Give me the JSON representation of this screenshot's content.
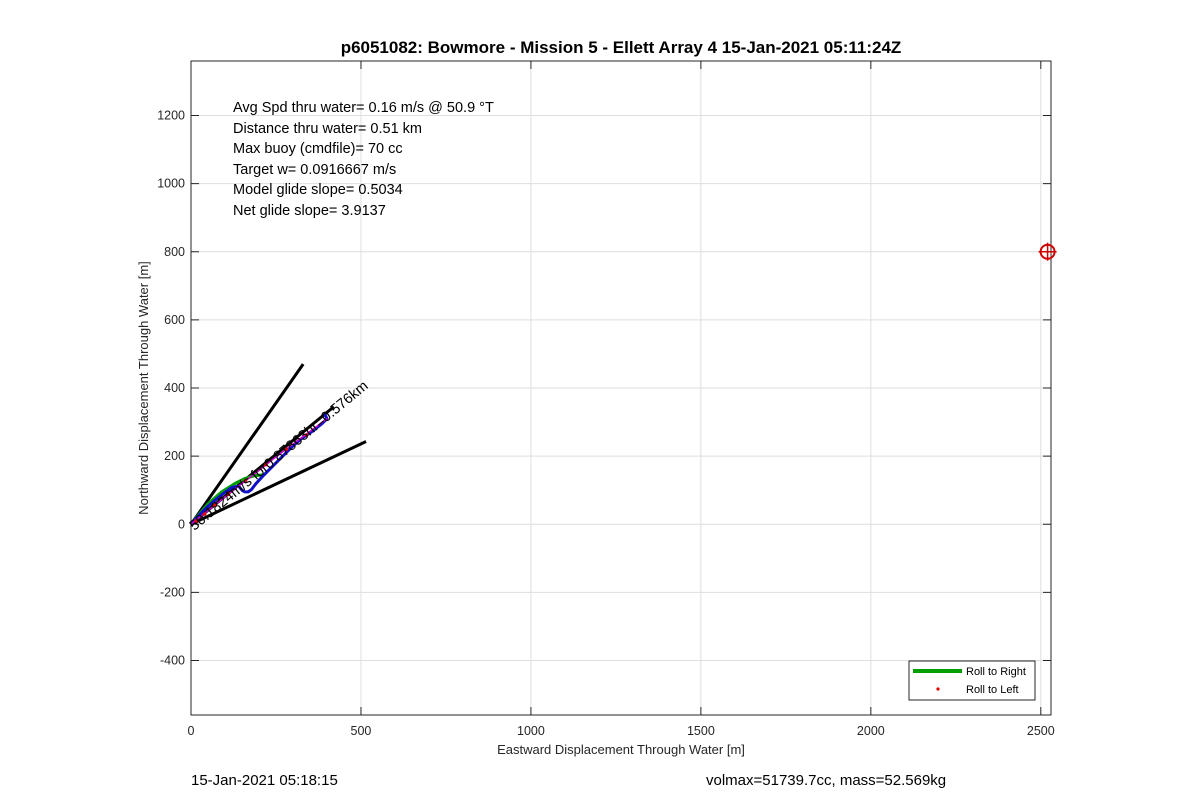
{
  "chart_data": {
    "type": "line",
    "title": "p6051082: Bowmore - Mission 5 - Ellett Array 4 15-Jan-2021 05:11:24Z",
    "xlabel": "Eastward Displacement Through Water [m]",
    "ylabel": "Northward Displacement Through Water [m]",
    "xlim": [
      0,
      2530
    ],
    "ylim": [
      -560,
      1360
    ],
    "xticks": [
      0,
      500,
      1000,
      1500,
      2000,
      2500
    ],
    "yticks": [
      -400,
      -200,
      0,
      200,
      400,
      600,
      800,
      1000,
      1200
    ],
    "grid": true,
    "info_lines": [
      "Avg Spd thru water=  0.16 m/s @  50.9 °T",
      "Distance thru water=  0.51 km",
      "Max buoy (cmdfile)= 70 cc",
      "Target w= 0.0916667 m/s",
      "Model glide slope= 0.5034",
      "Net glide slope= 3.9137"
    ],
    "heading_line_label": "50.1824m/s for0.87863hr=0.576km",
    "sector_lines": [
      {
        "name": "sector-line-upper",
        "color": "#000000",
        "x": [
          0,
          330
        ],
        "y": [
          0,
          470
        ]
      },
      {
        "name": "sector-line-lower",
        "color": "#000000",
        "x": [
          0,
          515
        ],
        "y": [
          0,
          243
        ]
      },
      {
        "name": "heading-line",
        "color": "#000000",
        "x": [
          0,
          420
        ],
        "y": [
          0,
          345
        ]
      }
    ],
    "series": [
      {
        "name": "Roll to Right",
        "color": "#00a000",
        "x": [
          0,
          20,
          50,
          90,
          130,
          160,
          185,
          210
        ],
        "y": [
          0,
          25,
          60,
          95,
          120,
          135,
          142,
          145
        ]
      },
      {
        "color": "#1010c8",
        "x": [
          0,
          10,
          25,
          45,
          70,
          95,
          120,
          140,
          150,
          158,
          168,
          178,
          190,
          210,
          240,
          270,
          300,
          330,
          360,
          385,
          400,
          395
        ],
        "y": [
          0,
          12,
          28,
          48,
          70,
          90,
          108,
          112,
          100,
          95,
          95,
          102,
          118,
          140,
          170,
          200,
          230,
          255,
          275,
          295,
          310,
          320
        ]
      },
      {
        "color": "#d000d0",
        "x": [
          0,
          40,
          90,
          140,
          190,
          240,
          290,
          340,
          380,
          400
        ],
        "y": [
          0,
          32,
          72,
          112,
          150,
          190,
          228,
          265,
          295,
          310
        ]
      }
    ],
    "roll_to_left_points": {
      "name": "Roll to Left",
      "color": "#e00000",
      "x": [
        15,
        40,
        70,
        110,
        160,
        220,
        280,
        340
      ],
      "y": [
        10,
        30,
        55,
        88,
        128,
        175,
        220,
        262
      ]
    },
    "target_marker": {
      "x": 2520,
      "y": 800,
      "color": "#d00000"
    },
    "legend": {
      "position": "bottom-right",
      "entries": [
        "Roll to Right",
        "Roll to Left"
      ]
    }
  },
  "footer": {
    "timestamp": "15-Jan-2021 05:18:15",
    "vol_mass": "volmax=51739.7cc, mass=52.569kg"
  }
}
